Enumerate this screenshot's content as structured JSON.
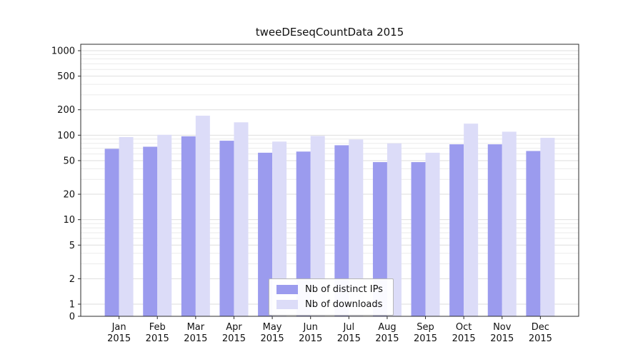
{
  "chart_data": {
    "type": "bar",
    "title": "tweeDEseqCountData 2015",
    "scale": "symlog",
    "grid": true,
    "legend_position": "lower center",
    "year_label": "2015",
    "categories": [
      "Jan",
      "Feb",
      "Mar",
      "Apr",
      "May",
      "Jun",
      "Jul",
      "Aug",
      "Sep",
      "Oct",
      "Nov",
      "Dec"
    ],
    "series": [
      {
        "name": "Nb of distinct IPs",
        "color": "#9b9bee",
        "values": [
          69,
          73,
          97,
          86,
          62,
          64,
          76,
          48,
          48,
          78,
          78,
          65
        ]
      },
      {
        "name": "Nb of downloads",
        "color": "#dcdcf8",
        "values": [
          95,
          101,
          170,
          142,
          84,
          98,
          89,
          80,
          62,
          137,
          110,
          93
        ]
      }
    ],
    "yticks": [
      0,
      1,
      2,
      5,
      10,
      20,
      50,
      100,
      200,
      500,
      1000
    ],
    "ylim": [
      0,
      1300
    ],
    "xlabel": "",
    "ylabel": ""
  }
}
